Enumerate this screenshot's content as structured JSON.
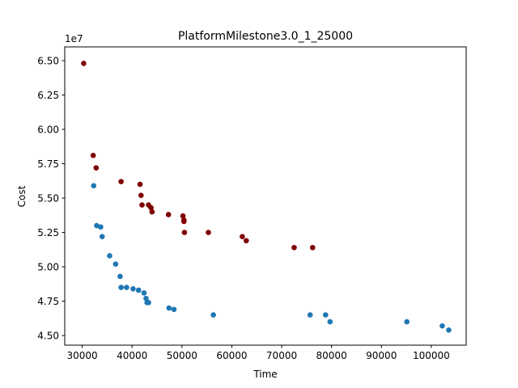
{
  "chart_data": {
    "type": "scatter",
    "title": "PlatformMilestone3.0_1_25000",
    "xlabel": "Time",
    "ylabel": "Cost",
    "y_offset_label": "1e7",
    "xlim": [
      26500,
      107000
    ],
    "ylim": [
      44300000.0,
      66000000.0
    ],
    "xticks": [
      30000,
      40000,
      50000,
      60000,
      70000,
      80000,
      90000,
      100000
    ],
    "yticks": [
      45000000.0,
      47500000.0,
      50000000.0,
      52500000.0,
      55000000.0,
      57500000.0,
      60000000.0,
      62500000.0,
      65000000.0
    ],
    "xtick_labels": [
      "30000",
      "40000",
      "50000",
      "60000",
      "70000",
      "80000",
      "90000",
      "100000"
    ],
    "ytick_labels": [
      "4.50",
      "4.75",
      "5.00",
      "5.25",
      "5.50",
      "5.75",
      "6.00",
      "6.25",
      "6.50"
    ],
    "grid": false,
    "legend": "none",
    "series": [
      {
        "color": "#1f77b4",
        "points": [
          [
            32300,
            55900000.0
          ],
          [
            32900,
            53000000.0
          ],
          [
            33700,
            52900000.0
          ],
          [
            34000,
            52200000.0
          ],
          [
            35500,
            50800000.0
          ],
          [
            36700,
            50200000.0
          ],
          [
            37600,
            49300000.0
          ],
          [
            37800,
            48500000.0
          ],
          [
            38900,
            48500000.0
          ],
          [
            40200,
            48400000.0
          ],
          [
            41300,
            48300000.0
          ],
          [
            42400,
            48100000.0
          ],
          [
            42800,
            47700000.0
          ],
          [
            43000,
            47400000.0
          ],
          [
            43300,
            47400000.0
          ],
          [
            47400,
            47000000.0
          ],
          [
            48400,
            46900000.0
          ],
          [
            56300,
            46500000.0
          ],
          [
            75700,
            46500000.0
          ],
          [
            78800,
            46500000.0
          ],
          [
            79700,
            46000000.0
          ],
          [
            95100,
            46000000.0
          ],
          [
            102200,
            45700000.0
          ],
          [
            103500,
            45400000.0
          ]
        ]
      },
      {
        "color": "#800000",
        "points": [
          [
            30300,
            64800000.0
          ],
          [
            32200,
            58100000.0
          ],
          [
            32800,
            57200000.0
          ],
          [
            37800,
            56200000.0
          ],
          [
            41600,
            56000000.0
          ],
          [
            41800,
            55200000.0
          ],
          [
            42000,
            54500000.0
          ],
          [
            43300,
            54500000.0
          ],
          [
            43800,
            54300000.0
          ],
          [
            44000,
            54000000.0
          ],
          [
            47300,
            53800000.0
          ],
          [
            50200,
            53700000.0
          ],
          [
            50400,
            53400000.0
          ],
          [
            50400,
            53300000.0
          ],
          [
            50500,
            52500000.0
          ],
          [
            55300,
            52500000.0
          ],
          [
            62100,
            52200000.0
          ],
          [
            62900,
            51900000.0
          ],
          [
            72500,
            51400000.0
          ],
          [
            76200,
            51400000.0
          ]
        ]
      }
    ]
  }
}
